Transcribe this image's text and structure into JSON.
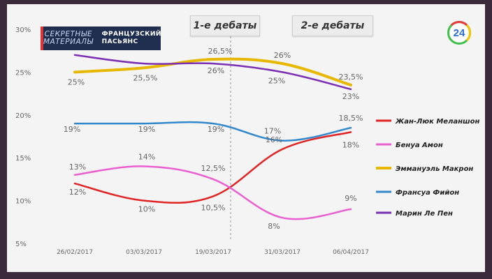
{
  "badge": {
    "left_text": "СЕКРЕТНЫЕ МАТЕРИАЛЫ",
    "right_line1": "ФРАНЦУЗСКИЙ",
    "right_line2": "ПАСЬЯНС"
  },
  "logo_text": "24",
  "debates": [
    "1-е дебаты",
    "2-е дебаты"
  ],
  "colors": {
    "Жан-Люк Меланшон": "#e02424",
    "Бенуа Амон": "#e95fd0",
    "Эммануэль Макрон": "#e8b800",
    "Франсуа Фийон": "#3388cc",
    "Марин Ле Пен": "#7b2fb3"
  },
  "chart_data": {
    "type": "line",
    "x": [
      "26/02/2017",
      "03/03/2017",
      "19/03/2017",
      "31/03/2017",
      "06/04/2017"
    ],
    "y_ticks": [
      "30%",
      "25%",
      "20%",
      "15%",
      "10%",
      "5%"
    ],
    "ylim": [
      5,
      30
    ],
    "grid": false,
    "legend_position": "right",
    "debate_dates": [
      "19/03/2017",
      "06/04/2017"
    ],
    "series": [
      {
        "name": "Жан-Люк Меланшон",
        "values": [
          12,
          10,
          10.5,
          16,
          18
        ],
        "labels": [
          "12%",
          "10%",
          "10,5%",
          "16%",
          "18%"
        ]
      },
      {
        "name": "Бенуа Амон",
        "values": [
          13,
          14,
          12.5,
          8,
          9
        ],
        "labels": [
          "13%",
          "14%",
          "12,5%",
          "8%",
          "9%"
        ]
      },
      {
        "name": "Эммануэль Макрон",
        "values": [
          25,
          25.5,
          26.5,
          26,
          23.5
        ],
        "labels": [
          "25%",
          "25,5%",
          "26,5%",
          "26%",
          "23,5%"
        ]
      },
      {
        "name": "Франсуа Фийон",
        "values": [
          19,
          19,
          19,
          17,
          18.5
        ],
        "labels": [
          "19%",
          "19%",
          "19%",
          "17%",
          "18,5%"
        ]
      },
      {
        "name": "Марин Ле Пен",
        "values": [
          27,
          26,
          26,
          25,
          23
        ],
        "labels": [
          "",
          "",
          "26%",
          "25%",
          "23%"
        ]
      }
    ]
  }
}
